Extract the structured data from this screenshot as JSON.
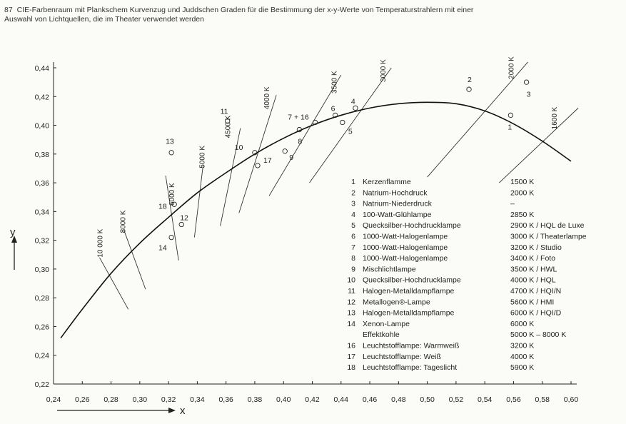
{
  "caption": {
    "number": "87",
    "line1": "CIE-Farbenraum mit Plankschem Kurvenzug und Juddschen Graden für die Bestimmung der x-y-Werte von Temperaturstrahlern mit einer",
    "line2": "Auswahl von Lichtquellen, die im Theater verwendet werden"
  },
  "chart_data": {
    "type": "scatter",
    "xlabel": "x",
    "ylabel": "y",
    "xlim": [
      0.24,
      0.6
    ],
    "ylim": [
      0.22,
      0.44
    ],
    "x_ticks": [
      "0,24",
      "0,26",
      "0,28",
      "0,30",
      "0,32",
      "0,34",
      "0,36",
      "0,38",
      "0,40",
      "0,42",
      "0,44",
      "0,46",
      "0,48",
      "0,50",
      "0,52",
      "0,54",
      "0,56",
      "0,58",
      "0,60"
    ],
    "y_ticks": [
      "0,22",
      "0,24",
      "0,26",
      "0,28",
      "0,30",
      "0,32",
      "0,34",
      "0,36",
      "0,38",
      "0,40",
      "0,42",
      "0,44"
    ],
    "planck_curve": [
      {
        "x": 0.245,
        "y": 0.252
      },
      {
        "x": 0.26,
        "y": 0.272
      },
      {
        "x": 0.28,
        "y": 0.297
      },
      {
        "x": 0.3,
        "y": 0.318
      },
      {
        "x": 0.32,
        "y": 0.336
      },
      {
        "x": 0.34,
        "y": 0.353
      },
      {
        "x": 0.36,
        "y": 0.367
      },
      {
        "x": 0.38,
        "y": 0.38
      },
      {
        "x": 0.4,
        "y": 0.391
      },
      {
        "x": 0.42,
        "y": 0.4
      },
      {
        "x": 0.44,
        "y": 0.407
      },
      {
        "x": 0.46,
        "y": 0.412
      },
      {
        "x": 0.48,
        "y": 0.415
      },
      {
        "x": 0.5,
        "y": 0.416
      },
      {
        "x": 0.52,
        "y": 0.415
      },
      {
        "x": 0.54,
        "y": 0.41
      },
      {
        "x": 0.56,
        "y": 0.401
      },
      {
        "x": 0.58,
        "y": 0.389
      },
      {
        "x": 0.6,
        "y": 0.375
      }
    ],
    "isotherms": [
      {
        "label": "10 000 K",
        "x1": 0.272,
        "y1": 0.308,
        "x2": 0.292,
        "y2": 0.272
      },
      {
        "label": "8000 K",
        "x1": 0.289,
        "y1": 0.327,
        "x2": 0.304,
        "y2": 0.286
      },
      {
        "label": "6000 K",
        "x1": 0.318,
        "y1": 0.365,
        "x2": 0.327,
        "y2": 0.306
      },
      {
        "label": "5000 K",
        "x1": 0.344,
        "y1": 0.372,
        "x2": 0.338,
        "y2": 0.322
      },
      {
        "label": "4500 K",
        "x1": 0.37,
        "y1": 0.398,
        "x2": 0.356,
        "y2": 0.33
      },
      {
        "label": "4000 K",
        "x1": 0.395,
        "y1": 0.421,
        "x2": 0.369,
        "y2": 0.339
      },
      {
        "label": "3500 K",
        "x1": 0.44,
        "y1": 0.435,
        "x2": 0.39,
        "y2": 0.351
      },
      {
        "label": "3000 K",
        "x1": 0.475,
        "y1": 0.44,
        "x2": 0.418,
        "y2": 0.36
      },
      {
        "label": "2000 K",
        "x1": 0.57,
        "y1": 0.444,
        "x2": 0.5,
        "y2": 0.364
      },
      {
        "label": "1600 K",
        "x1": 0.605,
        "y1": 0.412,
        "x2": 0.55,
        "y2": 0.36
      }
    ],
    "isotherm_label_positions": [
      {
        "label": "10 000 K",
        "x": 0.274,
        "y": 0.318
      },
      {
        "label": "8000 K",
        "x": 0.29,
        "y": 0.333
      },
      {
        "label": "6000 K",
        "x": 0.324,
        "y": 0.352
      },
      {
        "label": "5000 K",
        "x": 0.345,
        "y": 0.378
      },
      {
        "label": "4500 K",
        "x": 0.363,
        "y": 0.399
      },
      {
        "label": "4000 K",
        "x": 0.39,
        "y": 0.419
      },
      {
        "label": "3500 K",
        "x": 0.437,
        "y": 0.43
      },
      {
        "label": "3000 K",
        "x": 0.471,
        "y": 0.438
      },
      {
        "label": "2000 K",
        "x": 0.56,
        "y": 0.44
      },
      {
        "label": "1600 K",
        "x": 0.59,
        "y": 0.405
      }
    ],
    "points": [
      {
        "id": "1",
        "x": 0.558,
        "y": 0.407,
        "lx": 0.556,
        "ly": 0.397
      },
      {
        "id": "2",
        "x": 0.529,
        "y": 0.425,
        "lx": 0.528,
        "ly": 0.43
      },
      {
        "id": "3",
        "x": 0.569,
        "y": 0.43,
        "lx": 0.569,
        "ly": 0.42
      },
      {
        "id": "4",
        "x": 0.45,
        "y": 0.412,
        "lx": 0.447,
        "ly": 0.415
      },
      {
        "id": "5",
        "x": 0.441,
        "y": 0.402,
        "lx": 0.445,
        "ly": 0.394
      },
      {
        "id": "6",
        "x": 0.436,
        "y": 0.407,
        "lx": 0.433,
        "ly": 0.41
      },
      {
        "id": "7 + 16",
        "x": 0.422,
        "y": 0.402,
        "lx": 0.403,
        "ly": 0.404
      },
      {
        "id": "8",
        "x": 0.411,
        "y": 0.397,
        "lx": 0.41,
        "ly": 0.387
      },
      {
        "id": "9",
        "x": 0.401,
        "y": 0.382,
        "lx": 0.404,
        "ly": 0.376
      },
      {
        "id": "10",
        "x": 0.38,
        "y": 0.381,
        "lx": 0.366,
        "ly": 0.383
      },
      {
        "id": "11",
        "x": 0.361,
        "y": 0.403,
        "lx": 0.356,
        "ly": 0.408
      },
      {
        "id": "12",
        "x": 0.329,
        "y": 0.331,
        "lx": 0.328,
        "ly": 0.334
      },
      {
        "id": "13",
        "x": 0.322,
        "y": 0.381,
        "lx": 0.318,
        "ly": 0.387
      },
      {
        "id": "14",
        "x": 0.322,
        "y": 0.322,
        "lx": 0.313,
        "ly": 0.313
      },
      {
        "id": "17",
        "x": 0.382,
        "y": 0.372,
        "lx": 0.386,
        "ly": 0.374
      },
      {
        "id": "18",
        "x": 0.324,
        "y": 0.345,
        "lx": 0.313,
        "ly": 0.342
      }
    ],
    "legend": [
      {
        "num": "1",
        "name": "Kerzenflamme",
        "temp": "1500 K"
      },
      {
        "num": "2",
        "name": "Natrium-Hochdruck",
        "temp": "2000 K"
      },
      {
        "num": "3",
        "name": "Natrium-Niederdruck",
        "temp": "–"
      },
      {
        "num": "4",
        "name": "100-Watt-Glühlampe",
        "temp": "2850 K"
      },
      {
        "num": "5",
        "name": "Quecksilber-Hochdrucklampe",
        "temp": "2900 K / HQL de Luxe"
      },
      {
        "num": "6",
        "name": "1000-Watt-Halogenlampe",
        "temp": "3000 K / Theaterlampe"
      },
      {
        "num": "7",
        "name": "1000-Watt-Halogenlampe",
        "temp": "3200 K / Studio"
      },
      {
        "num": "8",
        "name": "1000-Watt-Halogenlampe",
        "temp": "3400 K / Foto"
      },
      {
        "num": "9",
        "name": "Mischlichtlampe",
        "temp": "3500 K / HWL"
      },
      {
        "num": "10",
        "name": "Quecksilber-Hochdrucklampe",
        "temp": "4000 K / HQL"
      },
      {
        "num": "11",
        "name": "Halogen-Metalldampflampe",
        "temp": "4700 K / HQI/N"
      },
      {
        "num": "12",
        "name": "Metallogen®-Lampe",
        "temp": "5600 K / HMI"
      },
      {
        "num": "13",
        "name": "Halogen-Metalldampflampe",
        "temp": "6000 K / HQI/D"
      },
      {
        "num": "14",
        "name": "Xenon-Lampe",
        "temp": "6000 K"
      },
      {
        "num": "",
        "name": "Effektkohle",
        "temp": "5000 K – 8000 K"
      },
      {
        "num": "16",
        "name": "Leuchtstofflampe: Warmweiß",
        "temp": "3200 K"
      },
      {
        "num": "17",
        "name": "Leuchtstofflampe: Weiß",
        "temp": "4000 K"
      },
      {
        "num": "18",
        "name": "Leuchtstofflampe: Tageslicht",
        "temp": "5900 K"
      }
    ]
  }
}
